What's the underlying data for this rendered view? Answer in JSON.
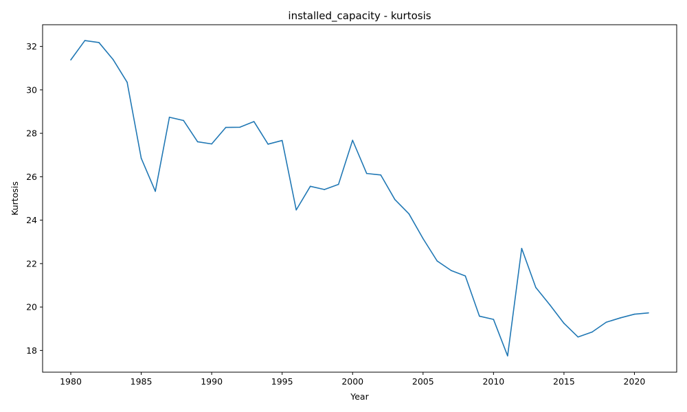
{
  "chart_data": {
    "type": "line",
    "title": "installed_capacity - kurtosis",
    "xlabel": "Year",
    "ylabel": "Kurtosis",
    "xlim": [
      1978,
      2023
    ],
    "ylim": [
      17.0,
      33.0
    ],
    "x_ticks": [
      1980,
      1985,
      1990,
      1995,
      2000,
      2005,
      2010,
      2015,
      2020
    ],
    "y_ticks": [
      18,
      20,
      22,
      24,
      26,
      28,
      30,
      32
    ],
    "grid": false,
    "color": "#1f77b4",
    "series": [
      {
        "x": [
          1980,
          1981,
          1982,
          1983,
          1984,
          1985,
          1986,
          1987,
          1988,
          1989,
          1990,
          1991,
          1992,
          1993,
          1994,
          1995,
          1996,
          1997,
          1998,
          1999,
          2000,
          2001,
          2002,
          2003,
          2004,
          2005,
          2006,
          2007,
          2008,
          2009,
          2010,
          2011,
          2012,
          2013,
          2014,
          2015,
          2016,
          2017,
          2018,
          2019,
          2020,
          2021
        ],
        "values": [
          31.38,
          32.27,
          32.18,
          31.4,
          30.35,
          26.85,
          25.33,
          28.74,
          28.59,
          27.61,
          27.51,
          28.27,
          28.28,
          28.54,
          27.5,
          27.67,
          24.47,
          25.56,
          25.41,
          25.65,
          27.68,
          26.15,
          26.08,
          24.95,
          24.29,
          23.15,
          22.12,
          21.68,
          21.43,
          19.58,
          19.43,
          17.75,
          22.7,
          20.9,
          20.1,
          19.25,
          18.62,
          18.85,
          19.3,
          19.5,
          19.67,
          19.73
        ]
      }
    ]
  }
}
